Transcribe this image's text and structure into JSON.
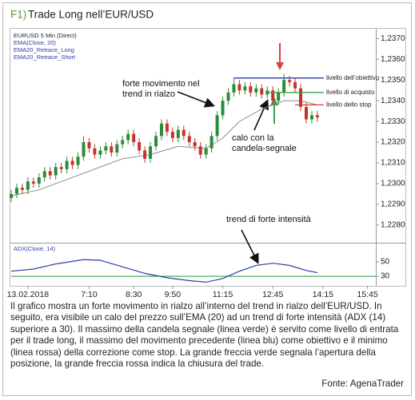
{
  "figure_label": "F1)",
  "chart_data": {
    "type": "candlestick",
    "title": "Trade Long nell’EUR/USD",
    "chart_label": "EURUSD 5 Min (Direct)",
    "indicator_labels": [
      "EMA20_Retrace_Long",
      "EMA20_Retrace_Short"
    ],
    "up_color": "#2e8b3a",
    "down_color": "#c4362c",
    "open": [
      1.2293,
      1.2295,
      1.2298,
      1.2297,
      1.2301,
      1.23,
      1.2303,
      1.2306,
      1.2304,
      1.2308,
      1.2307,
      1.2311,
      1.2309,
      1.2313,
      1.232,
      1.2317,
      1.2314,
      1.2316,
      1.2318,
      1.2315,
      1.2319,
      1.2321,
      1.2324,
      1.232,
      1.2316,
      1.2312,
      1.2318,
      1.2323,
      1.2329,
      1.2325,
      1.2322,
      1.2326,
      1.2323,
      1.232,
      1.2318,
      1.2314,
      1.2317,
      1.2323,
      1.2333,
      1.234,
      1.2344,
      1.2348,
      1.2345,
      1.2347,
      1.2344,
      1.2346,
      1.2343,
      1.2345,
      1.234,
      1.2344,
      1.235,
      1.2349,
      1.2346,
      1.2337,
      1.2331,
      1.2333
    ],
    "high": [
      1.2297,
      1.23,
      1.23,
      1.2303,
      1.2303,
      1.2305,
      1.2308,
      1.2308,
      1.231,
      1.231,
      1.2313,
      1.2313,
      1.2315,
      1.2323,
      1.2322,
      1.2319,
      1.2318,
      1.232,
      1.232,
      1.2321,
      1.2323,
      1.2326,
      1.2326,
      1.2322,
      1.2318,
      1.232,
      1.2325,
      1.2331,
      1.2331,
      1.2327,
      1.2328,
      1.2328,
      1.2325,
      1.2322,
      1.232,
      1.2319,
      1.2325,
      1.2335,
      1.2342,
      1.2346,
      1.2351,
      1.235,
      1.2349,
      1.2349,
      1.2348,
      1.2348,
      1.2347,
      1.2347,
      1.2346,
      1.2353,
      1.2352,
      1.2351,
      1.2348,
      1.2339,
      1.2335,
      1.2335
    ],
    "low": [
      1.2291,
      1.2293,
      1.2295,
      1.2295,
      1.2298,
      1.2298,
      1.2301,
      1.2302,
      1.2302,
      1.2305,
      1.2305,
      1.2307,
      1.2307,
      1.2311,
      1.2315,
      1.2312,
      1.2312,
      1.2314,
      1.2313,
      1.2313,
      1.2317,
      1.2319,
      1.2318,
      1.2314,
      1.231,
      1.231,
      1.2316,
      1.2321,
      1.2323,
      1.232,
      1.232,
      1.2321,
      1.2318,
      1.2316,
      1.2312,
      1.2312,
      1.2315,
      1.2321,
      1.2331,
      1.2338,
      1.2342,
      1.2343,
      1.2343,
      1.2342,
      1.2342,
      1.2341,
      1.2341,
      1.2338,
      1.2338,
      1.2342,
      1.2347,
      1.2344,
      1.2335,
      1.2329,
      1.2329,
      1.233
    ],
    "close": [
      1.2295,
      1.2298,
      1.2297,
      1.2301,
      1.23,
      1.2303,
      1.2306,
      1.2304,
      1.2308,
      1.2307,
      1.2311,
      1.2309,
      1.2313,
      1.232,
      1.2317,
      1.2314,
      1.2316,
      1.2318,
      1.2315,
      1.2319,
      1.2321,
      1.2324,
      1.232,
      1.2316,
      1.2312,
      1.2318,
      1.2323,
      1.2329,
      1.2325,
      1.2322,
      1.2326,
      1.2323,
      1.232,
      1.2318,
      1.2314,
      1.2317,
      1.2323,
      1.2333,
      1.234,
      1.2344,
      1.2348,
      1.2345,
      1.2347,
      1.2344,
      1.2346,
      1.2343,
      1.2345,
      1.234,
      1.2344,
      1.235,
      1.2349,
      1.2346,
      1.2337,
      1.2331,
      1.2333,
      1.2332
    ],
    "ema": {
      "name": "EMA(Close, 20)",
      "color": "#8a8a8a",
      "x": [
        0,
        5,
        10,
        15,
        20,
        25,
        30,
        35,
        38,
        41,
        45,
        49,
        52,
        55
      ],
      "values": [
        1.2294,
        1.2297,
        1.2302,
        1.2307,
        1.2312,
        1.2314,
        1.2318,
        1.2317,
        1.2322,
        1.233,
        1.2336,
        1.234,
        1.234,
        1.2338
      ]
    },
    "levels": [
      {
        "label": "livello dell’obiettivo",
        "value": 1.2351,
        "color": "#2b3fa8"
      },
      {
        "label": "livello di acquisto",
        "value": 1.2344,
        "color": "#3aa34a"
      },
      {
        "label": "livello dello stop",
        "value": 1.2338,
        "color": "#d9413a"
      }
    ],
    "annotations": [
      "forte movimento nel",
      "trend in rialzo",
      "calo con la",
      "candela-segnale",
      "trend di forte intensità"
    ],
    "ylim": [
      1.2273,
      1.2374
    ],
    "yticks": [
      {
        "value": 1.237,
        "label": "1,2370"
      },
      {
        "value": 1.236,
        "label": "1,2360"
      },
      {
        "value": 1.235,
        "label": "1,2350"
      },
      {
        "value": 1.234,
        "label": "1,2340"
      },
      {
        "value": 1.233,
        "label": "1,2330"
      },
      {
        "value": 1.232,
        "label": "1,2320"
      },
      {
        "value": 1.231,
        "label": "1,2310"
      },
      {
        "value": 1.23,
        "label": "1,2300"
      },
      {
        "value": 1.229,
        "label": "1,2290"
      },
      {
        "value": 1.228,
        "label": "1,2280"
      }
    ],
    "xlim": [
      0,
      65.5
    ],
    "xticks": [
      {
        "value": 3,
        "label": "13.02.2018"
      },
      {
        "value": 14,
        "label": "7:10"
      },
      {
        "value": 22,
        "label": "8:30"
      },
      {
        "value": 29,
        "label": "9:50"
      },
      {
        "value": 38,
        "label": "11:15"
      },
      {
        "value": 47,
        "label": "12:45"
      },
      {
        "value": 56,
        "label": "14:15"
      },
      {
        "value": 64,
        "label": "15:45"
      }
    ],
    "adx": {
      "name": "ADX(Close, 14)",
      "color": "#2b3fa8",
      "x": [
        0,
        4,
        8,
        13,
        16,
        20,
        24,
        28,
        32,
        35,
        38,
        41,
        44,
        47,
        50,
        53,
        55
      ],
      "values": [
        37,
        40,
        47,
        53,
        52,
        43,
        34,
        28,
        24,
        22,
        27,
        37,
        45,
        48,
        45,
        38,
        35
      ],
      "ylim": [
        18,
        74
      ],
      "yticks": [
        50,
        30
      ],
      "threshold": 30,
      "threshold_color": "#3aa34a"
    }
  },
  "caption": "Il grafico mostra un forte movimento in rialzo all’interno del trend in rialzo dell’EUR/USD. In seguito, era visibile un calo del prezzo sull’EMA (20) ad un trend di forte intensità (ADX (14) superiore a 30). Il massimo della candela segnale (linea verde) è servito come livello di entrata per il trade long, il massimo del movimento precedente (linea blu) come obiettivo e il minimo (linea rossa) della correzione come stop. La grande freccia verde segnala l’apertura della posizione, la grande freccia rossa indica la chiusura del trade.",
  "source": "Fonte: AgenaTrader"
}
